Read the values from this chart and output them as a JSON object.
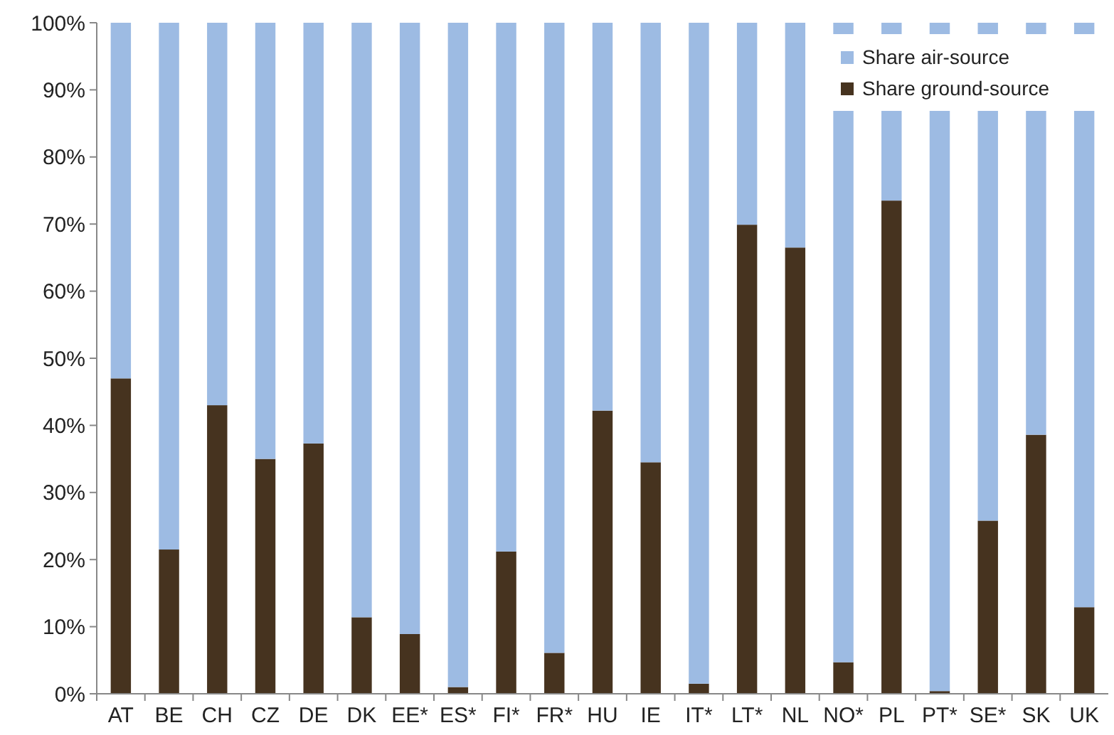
{
  "chart_data": {
    "type": "bar",
    "stacked": true,
    "categories": [
      "AT",
      "BE",
      "CH",
      "CZ",
      "DE",
      "DK",
      "EE*",
      "ES*",
      "FI*",
      "FR*",
      "HU",
      "IE",
      "IT*",
      "LT*",
      "NL",
      "NO*",
      "PL",
      "PT*",
      "SE*",
      "SK",
      "UK"
    ],
    "series": [
      {
        "name": "Share ground-source",
        "color": "#46331f",
        "values": [
          47,
          21.5,
          43,
          35,
          37.3,
          11.4,
          8.9,
          1,
          21.2,
          6.1,
          42.2,
          34.5,
          1.5,
          69.9,
          66.5,
          4.7,
          73.5,
          0.4,
          25.8,
          38.6,
          12.9
        ]
      },
      {
        "name": "Share air-source",
        "color": "#9dbbe3",
        "values": [
          53,
          78.5,
          57,
          65,
          62.7,
          88.6,
          91.1,
          99,
          78.8,
          93.9,
          57.8,
          65.5,
          98.5,
          30.1,
          33.5,
          95.3,
          26.5,
          99.6,
          74.2,
          61.4,
          87.1
        ]
      }
    ],
    "ylim": [
      0,
      100
    ],
    "yticks": [
      {
        "value": 0,
        "label": "0%"
      },
      {
        "value": 10,
        "label": "10%"
      },
      {
        "value": 20,
        "label": "20%"
      },
      {
        "value": 30,
        "label": "30%"
      },
      {
        "value": 40,
        "label": "40%"
      },
      {
        "value": 50,
        "label": "50%"
      },
      {
        "value": 60,
        "label": "60%"
      },
      {
        "value": 70,
        "label": "70%"
      },
      {
        "value": 80,
        "label": "80%"
      },
      {
        "value": 90,
        "label": "90%"
      },
      {
        "value": 100,
        "label": "100%"
      }
    ],
    "legend": "top right"
  }
}
